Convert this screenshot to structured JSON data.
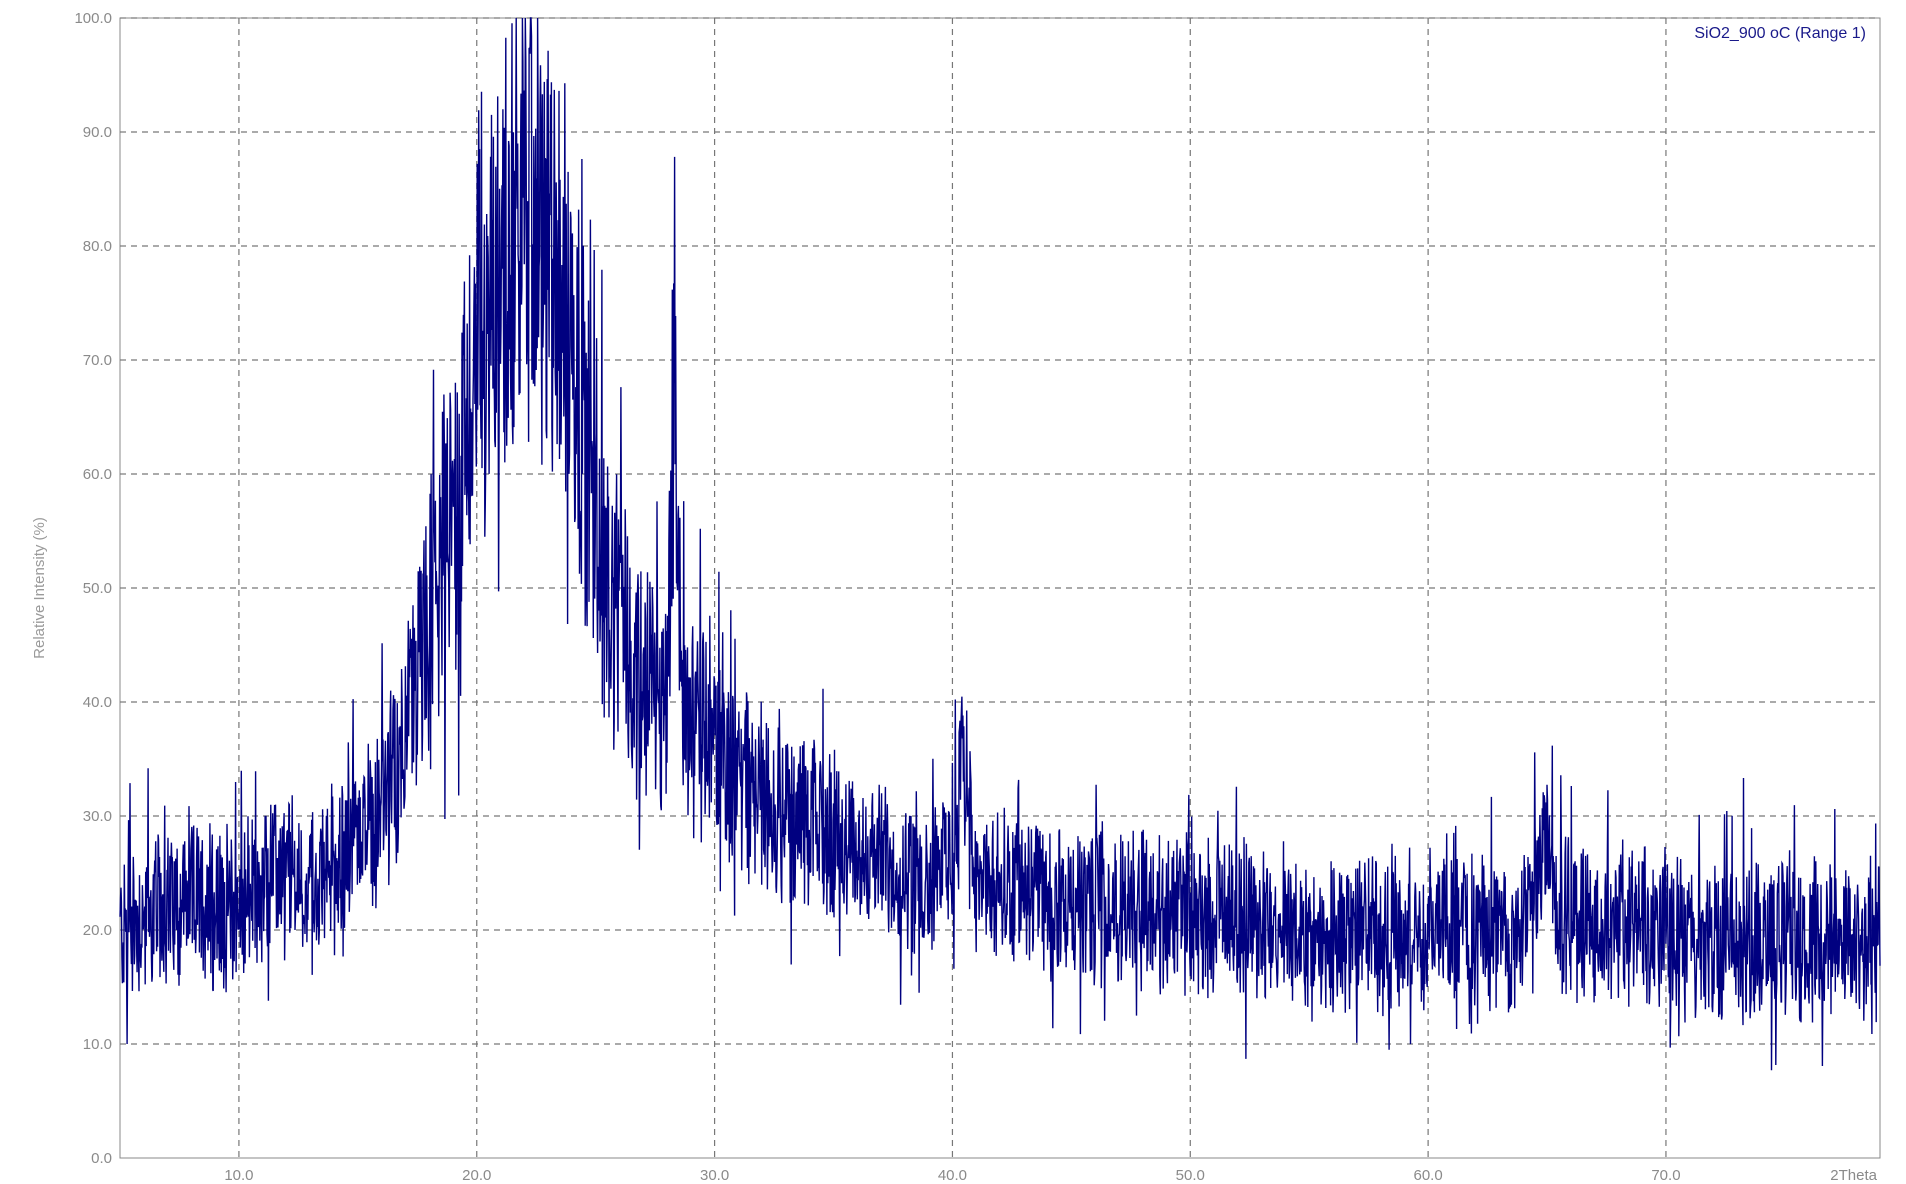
{
  "chart_data": {
    "type": "line",
    "title": "",
    "xlabel": "2Theta",
    "ylabel": "Relative Intensity (%)",
    "xlim": [
      5,
      79
    ],
    "ylim": [
      0,
      100
    ],
    "grid": true,
    "legend_position": "top-right",
    "x_ticks": [
      "10.0",
      "20.0",
      "30.0",
      "40.0",
      "50.0",
      "60.0",
      "70.0"
    ],
    "y_ticks": [
      "0.0",
      "10.0",
      "20.0",
      "30.0",
      "40.0",
      "50.0",
      "60.0",
      "70.0",
      "80.0",
      "90.0",
      "100.0"
    ],
    "series": [
      {
        "name": "SiO2_900 oC (Range 1)",
        "color": "#000080",
        "x": [
          5.0,
          6.0,
          7.0,
          8.0,
          9.0,
          10.0,
          11.0,
          12.0,
          13.0,
          14.0,
          15.0,
          16.0,
          16.5,
          17.0,
          17.5,
          18.0,
          18.5,
          19.0,
          19.5,
          20.0,
          20.5,
          21.0,
          21.5,
          22.0,
          22.5,
          23.0,
          23.5,
          24.0,
          24.5,
          25.0,
          25.5,
          26.0,
          26.5,
          27.0,
          27.5,
          28.0,
          28.3,
          28.6,
          29.0,
          29.5,
          30.0,
          31.0,
          32.0,
          33.0,
          34.0,
          35.0,
          36.0,
          37.0,
          38.0,
          39.0,
          40.0,
          40.5,
          41.0,
          42.0,
          43.0,
          44.0,
          45.0,
          46.0,
          48.0,
          50.0,
          52.0,
          54.0,
          56.0,
          58.0,
          60.0,
          62.0,
          64.0,
          64.8,
          65.5,
          66.0,
          68.0,
          70.0,
          72.0,
          74.0,
          76.0,
          78.0,
          79.0
        ],
        "values": [
          20,
          21,
          22,
          23,
          22,
          22,
          24,
          25,
          24,
          25,
          28,
          31,
          33,
          38,
          42,
          47,
          52,
          57,
          63,
          70,
          75,
          78,
          80,
          84,
          83,
          80,
          76,
          72,
          65,
          56,
          50,
          46,
          44,
          42,
          41,
          40,
          72,
          40,
          39,
          37,
          36,
          34,
          32,
          30,
          29,
          28,
          27,
          26,
          25,
          25,
          26,
          35,
          24,
          23,
          23,
          23,
          22,
          22,
          22,
          21,
          21,
          20,
          20,
          20,
          20,
          20,
          20,
          27,
          22,
          21,
          20,
          20,
          19,
          19,
          19,
          19,
          19
        ]
      }
    ]
  }
}
